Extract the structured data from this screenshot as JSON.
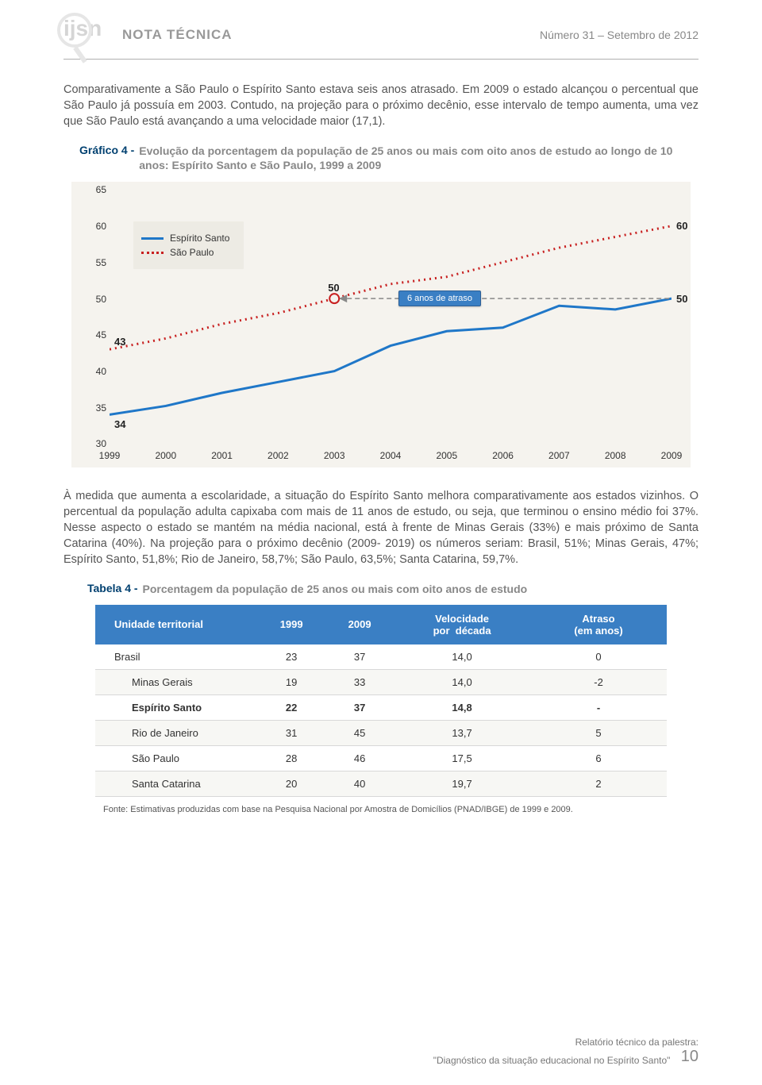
{
  "header": {
    "logo_text": "ijsn",
    "nota": "NOTA  TÉCNICA",
    "issue": "Número 31 – Setembro de 2012"
  },
  "para1": "Comparativamente a São Paulo o Espírito Santo estava seis anos atrasado. Em 2009 o estado alcançou o percentual que São Paulo já possuía em 2003. Contudo, na projeção para o próximo decênio, esse intervalo de tempo aumenta, uma vez que São Paulo está avançando a uma velocidade maior (17,1).",
  "chart": {
    "title_prefix": "Gráfico 4 -",
    "title_text": "Evolução da porcentagem da população de 25 anos ou mais com oito anos de estudo ao longo de 10 anos: Espírito Santo e São Paulo, 1999 a 2009",
    "ylim": [
      30,
      65
    ],
    "ytick_step": 5,
    "years": [
      "1999",
      "2000",
      "2001",
      "2002",
      "2003",
      "2004",
      "2005",
      "2006",
      "2007",
      "2008",
      "2009"
    ],
    "series": {
      "es": {
        "label": "Espírito Santo",
        "color": "#1f77c8",
        "values": [
          34,
          35.2,
          37,
          38.5,
          40,
          43.5,
          45.5,
          46,
          49,
          48.5,
          50
        ]
      },
      "sp": {
        "label": "São Paulo",
        "color": "#c82020",
        "values": [
          43,
          44.5,
          46.5,
          48,
          50,
          52,
          53,
          55,
          57,
          58.5,
          60
        ]
      }
    },
    "callout": "6 anos de atraso",
    "point_labels": {
      "es_start": "34",
      "sp_start": "43",
      "sp_2003": "50",
      "es_end": "50",
      "sp_end": "60"
    },
    "bg": "#f5f3ee"
  },
  "para2": "À medida que aumenta a escolaridade, a situação do Espírito Santo melhora comparativamente aos estados vizinhos. O percentual da população adulta capixaba com mais de 11 anos de estudo, ou seja, que terminou o ensino médio foi 37%.  Nesse aspecto o estado se mantém na média nacional, está à frente de Minas Gerais (33%) e mais próximo de Santa Catarina (40%). Na projeção para o próximo decênio (2009- 2019) os números seriam: Brasil, 51%; Minas Gerais, 47%; Espírito Santo, 51,8%; Rio de Janeiro, 58,7%; São Paulo, 63,5%; Santa Catarina, 59,7%.",
  "table": {
    "title_prefix": "Tabela 4 -",
    "title_text": "Porcentagem da população de 25 anos ou mais com oito anos de estudo",
    "header_bg": "#3a7fc4",
    "columns": [
      "Unidade territorial",
      "1999",
      "2009",
      "Velocidade por década",
      "Atraso (em anos)"
    ],
    "rows": [
      {
        "label": "Brasil",
        "indent": false,
        "hl": false,
        "c": [
          "23",
          "37",
          "14,0",
          "0"
        ]
      },
      {
        "label": "Minas Gerais",
        "indent": true,
        "hl": false,
        "c": [
          "19",
          "33",
          "14,0",
          "-2"
        ]
      },
      {
        "label": "Espírito Santo",
        "indent": true,
        "hl": true,
        "c": [
          "22",
          "37",
          "14,8",
          "-"
        ]
      },
      {
        "label": "Rio de Janeiro",
        "indent": true,
        "hl": false,
        "c": [
          "31",
          "45",
          "13,7",
          "5"
        ]
      },
      {
        "label": "São Paulo",
        "indent": true,
        "hl": false,
        "c": [
          "28",
          "46",
          "17,5",
          "6"
        ]
      },
      {
        "label": "Santa Catarina",
        "indent": true,
        "hl": false,
        "c": [
          "20",
          "40",
          "19,7",
          "2"
        ]
      }
    ],
    "fonte": "Fonte: Estimativas produzidas com base na Pesquisa Nacional por Amostra de Domicílios (PNAD/IBGE) de 1999 e 2009."
  },
  "footer": {
    "line1": "Relatório técnico da palestra:",
    "line2": "\"Diagnóstico da situação educacional no Espírito Santo\"",
    "page": "10"
  }
}
